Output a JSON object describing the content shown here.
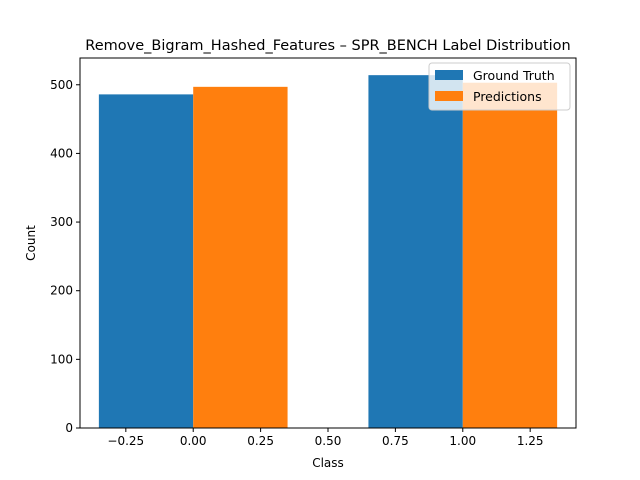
{
  "chart_data": {
    "type": "bar",
    "title": "Remove_Bigram_Hashed_Features – SPR_BENCH Label Distribution",
    "xlabel": "Class",
    "ylabel": "Count",
    "xlim": [
      -0.42,
      1.42
    ],
    "ylim": [
      0,
      539
    ],
    "xticks": [
      -0.25,
      0.0,
      0.25,
      0.5,
      0.75,
      1.0,
      1.25
    ],
    "xtick_labels": [
      "−0.25",
      "0.00",
      "0.25",
      "0.50",
      "0.75",
      "1.00",
      "1.25"
    ],
    "yticks": [
      0,
      100,
      200,
      300,
      400,
      500
    ],
    "ytick_labels": [
      "0",
      "100",
      "200",
      "300",
      "400",
      "500"
    ],
    "categories": [
      0,
      1
    ],
    "bar_width": 0.35,
    "grid": false,
    "legend_position": "top-right",
    "series": [
      {
        "name": "Ground Truth",
        "offset": -0.175,
        "values": [
          486,
          514
        ],
        "color": "#1f77b4"
      },
      {
        "name": "Predictions",
        "offset": 0.175,
        "values": [
          497,
          503
        ],
        "color": "#ff7f0e"
      }
    ]
  }
}
